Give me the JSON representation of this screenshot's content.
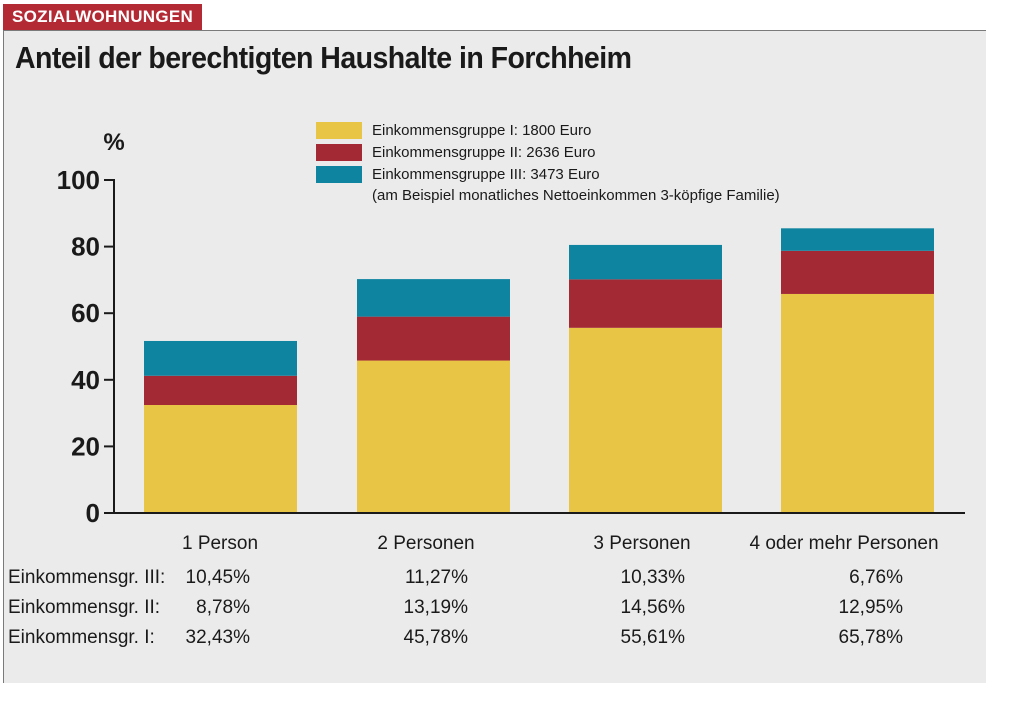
{
  "tag": "SOZIALWOHNUNGEN",
  "title": "Anteil der berechtigten Haushalte in Forchheim",
  "legend": {
    "items": [
      {
        "label": "Einkommensgruppe I: 1800 Euro",
        "color": "#e8c545"
      },
      {
        "label": "Einkommensgruppe II: 2636 Euro",
        "color": "#a32a35"
      },
      {
        "label": "Einkommensgruppe III: 3473 Euro",
        "color": "#0e84a1"
      }
    ],
    "note": "(am Beispiel monatliches Nettoeinkommen 3-köpfige Familie)"
  },
  "chart_data": {
    "type": "bar",
    "stacked": true,
    "categories": [
      "1 Person",
      "2 Personen",
      "3 Personen",
      "4 oder mehr Personen"
    ],
    "series": [
      {
        "name": "Einkommensgruppe I: 1800 Euro",
        "values": [
          32.43,
          45.78,
          55.61,
          65.78
        ]
      },
      {
        "name": "Einkommensgruppe II: 2636 Euro",
        "values": [
          8.78,
          13.19,
          14.56,
          12.95
        ]
      },
      {
        "name": "Einkommensgruppe III: 3473 Euro",
        "values": [
          10.45,
          11.27,
          10.33,
          6.76
        ]
      }
    ],
    "ylabel": "%",
    "ylim": [
      0,
      100
    ],
    "yticks": [
      "0",
      "20",
      "40",
      "60",
      "80",
      "100"
    ],
    "grid": false
  },
  "table": {
    "rows": [
      {
        "label": "Einkommensgr. III:",
        "values": [
          "10,45%",
          "11,27%",
          "10,33%",
          "6,76%"
        ]
      },
      {
        "label": "Einkommensgr. II:",
        "values": [
          "8,78%",
          "13,19%",
          "14,56%",
          "12,95%"
        ]
      },
      {
        "label": "Einkommensgr. I:",
        "values": [
          "32,43%",
          "45,78%",
          "55,61%",
          "65,78%"
        ]
      }
    ]
  }
}
